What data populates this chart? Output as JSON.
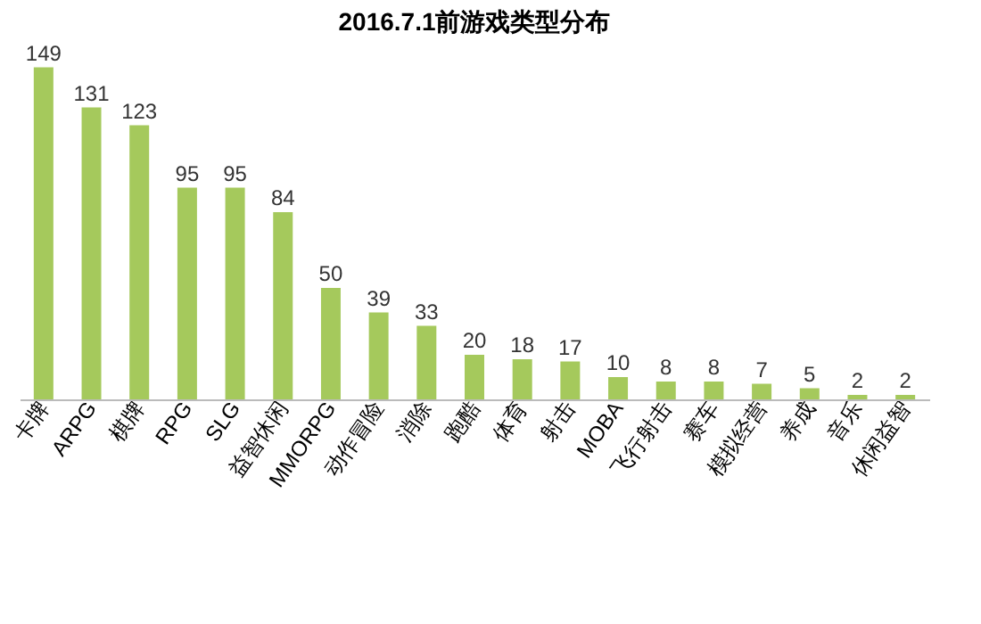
{
  "chart_data": {
    "type": "bar",
    "title": "2016.7.1前游戏类型分布",
    "categories": [
      "卡牌",
      "ARPG",
      "棋牌",
      "RPG",
      "SLG",
      "益智休闲",
      "MMORPG",
      "动作冒险",
      "消除",
      "跑酷",
      "体育",
      "射击",
      "MOBA",
      "飞行射击",
      "赛车",
      "模拟经营",
      "养成",
      "音乐",
      "休闲益智"
    ],
    "values": [
      149,
      131,
      123,
      95,
      95,
      84,
      50,
      39,
      33,
      20,
      18,
      17,
      10,
      8,
      8,
      7,
      5,
      2,
      2
    ],
    "color": "#a5c95c",
    "data_labels": true
  }
}
